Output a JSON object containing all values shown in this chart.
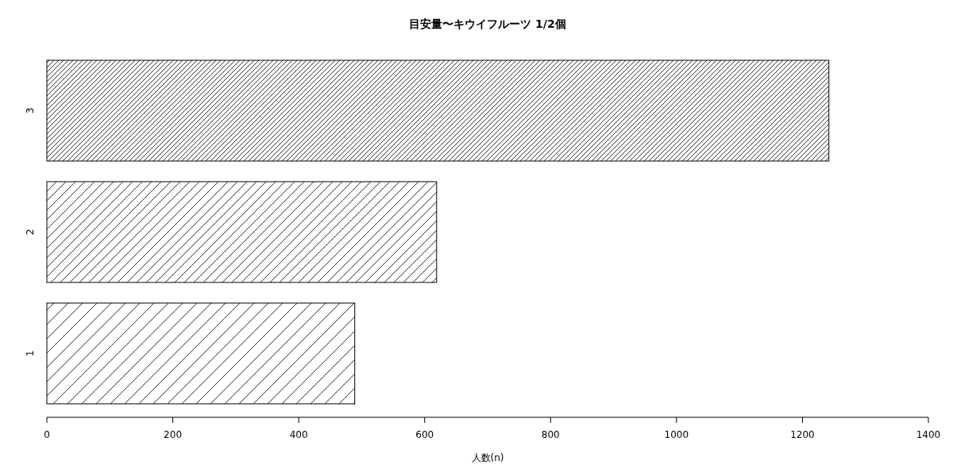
{
  "chart_data": {
    "type": "bar",
    "orientation": "horizontal",
    "title": "目安量〜キウイフルーツ 1/2個",
    "xlabel": "人数(n)",
    "categories": [
      "3",
      "2",
      "1"
    ],
    "values": [
      1242,
      619,
      489
    ],
    "xlim": [
      0,
      1400
    ],
    "xticks": [
      0,
      200,
      400,
      600,
      800,
      1000,
      1200,
      1400
    ],
    "grid": false
  }
}
